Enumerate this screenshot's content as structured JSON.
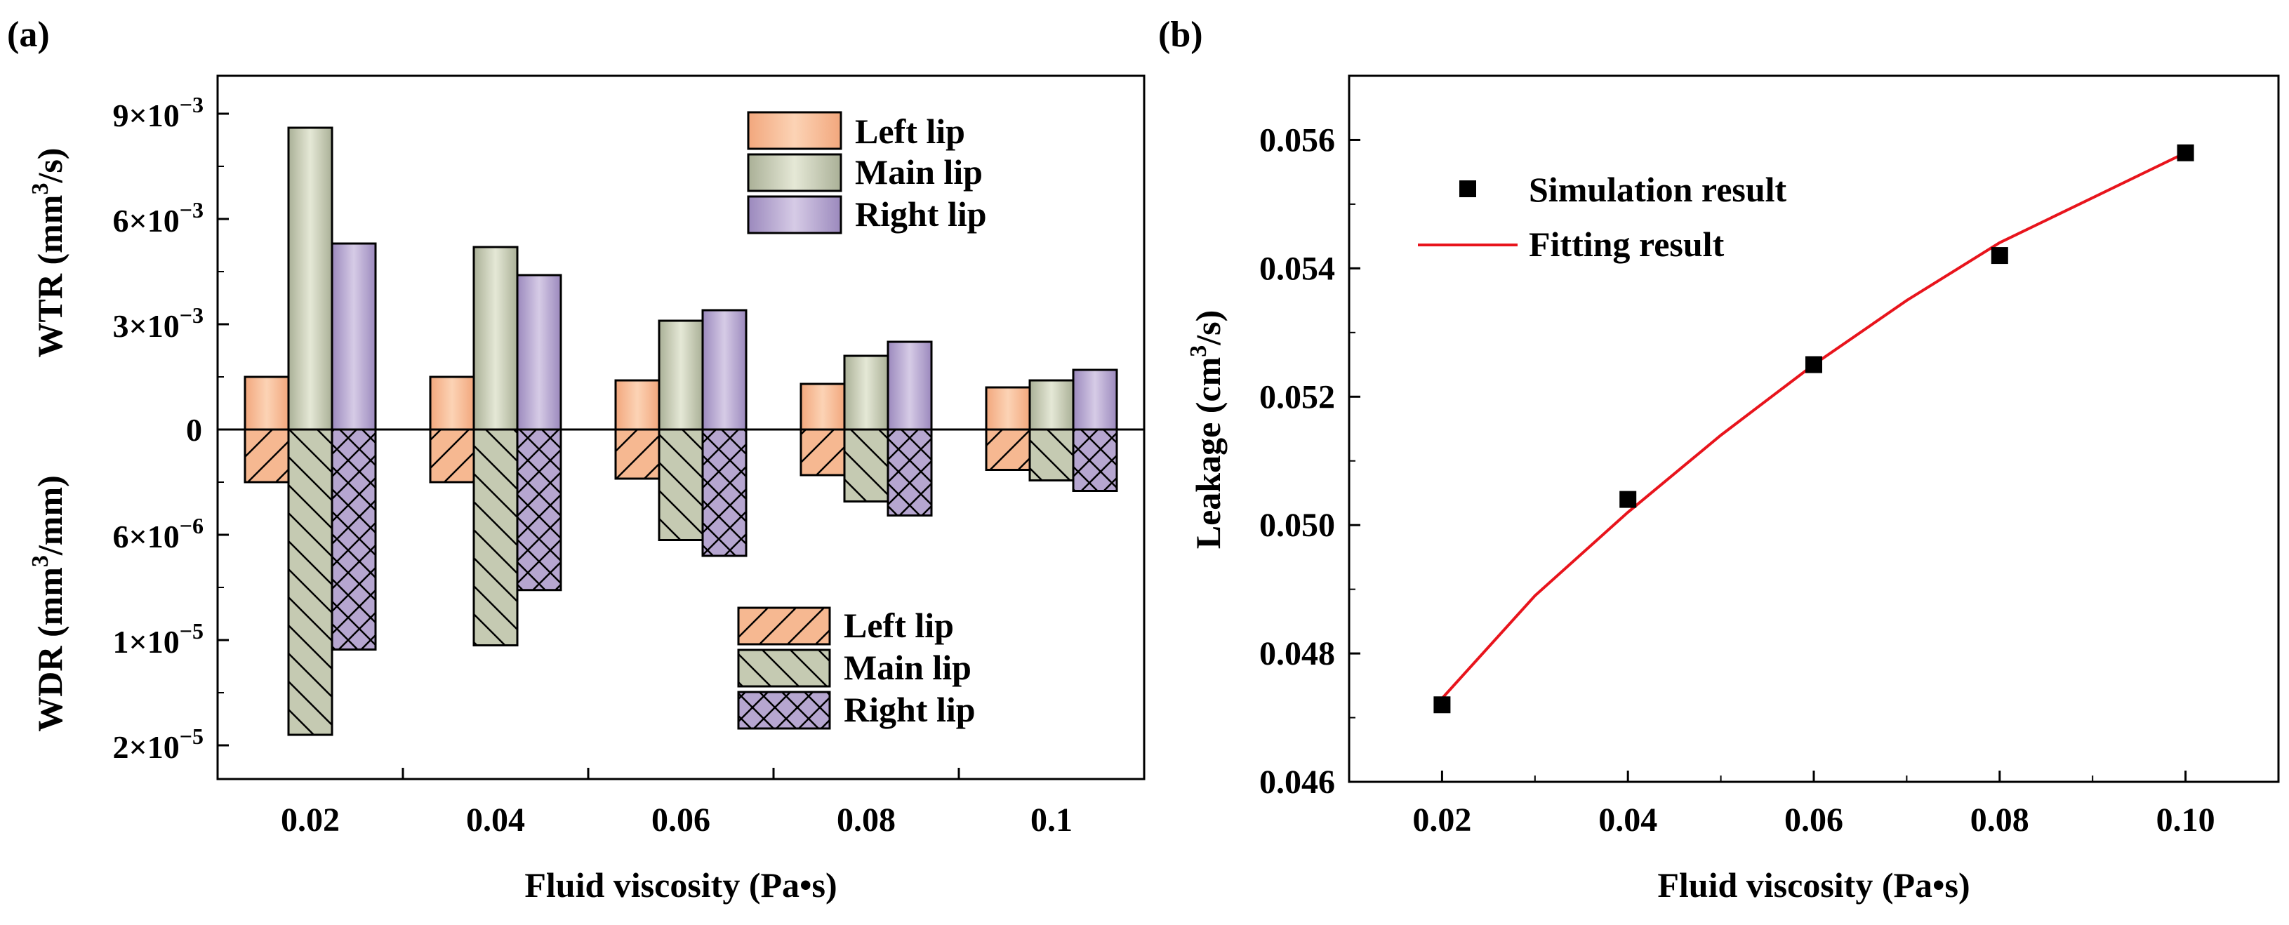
{
  "panel_a": {
    "label": "(a)",
    "xlabel": "Fluid viscosity (Pa•s)",
    "ylabel_top_main": "WTR (mm",
    "ylabel_top_sup": "3",
    "ylabel_top_end": "/s)",
    "ylabel_bottom_main": "WDR (mm",
    "ylabel_bottom_sup": "3",
    "ylabel_bottom_end": "/mm)",
    "ytick_zero": "0",
    "yticks_top": [
      {
        "mant": "3×10",
        "exp": "−3"
      },
      {
        "mant": "6×10",
        "exp": "−3"
      },
      {
        "mant": "9×10",
        "exp": "−3"
      }
    ],
    "yticks_bottom": [
      {
        "mant": "6×10",
        "exp": "−6"
      },
      {
        "mant": "1×10",
        "exp": "−5"
      },
      {
        "mant": "2×10",
        "exp": "−5"
      }
    ],
    "legend_top": [
      "Left lip",
      "Main lip",
      "Right lip"
    ],
    "legend_bottom": [
      "Left lip",
      "Main lip",
      "Right lip"
    ]
  },
  "panel_b": {
    "label": "(b)",
    "xlabel": "Fluid viscosity (Pa•s)",
    "ylabel_main": "Leakage (cm",
    "ylabel_sup": "3",
    "ylabel_end": "/s)",
    "legend_scatter": "Simulation result",
    "legend_line": "Fitting result"
  },
  "colors": {
    "left": "#f6b891",
    "main": "#c5cab2",
    "right": "#b6a6d0",
    "fit": "#e8141c",
    "marker": "#000000"
  },
  "chart_data": [
    {
      "type": "bar",
      "title": "",
      "categories": [
        "0.02",
        "0.04",
        "0.06",
        "0.08",
        "0.1"
      ],
      "xlabel": "Fluid viscosity (Pa•s)",
      "ylabel": "WTR (mm3/s)",
      "ylim": [
        0,
        0.0105
      ],
      "series": [
        {
          "name": "Left lip",
          "values": [
            0.0015,
            0.0015,
            0.0014,
            0.0013,
            0.0012
          ]
        },
        {
          "name": "Main lip",
          "values": [
            0.0086,
            0.0052,
            0.0031,
            0.0021,
            0.0014
          ]
        },
        {
          "name": "Right lip",
          "values": [
            0.0053,
            0.0044,
            0.0034,
            0.0025,
            0.0017
          ]
        }
      ]
    },
    {
      "type": "bar",
      "title": "",
      "categories": [
        "0.02",
        "0.04",
        "0.06",
        "0.08",
        "0.1"
      ],
      "xlabel": "Fluid viscosity (Pa•s)",
      "ylabel": "WDR (mm3/mm)",
      "scale": "nonlinear (ticks 6e-6, 1e-5, 2e-5 at equal spacing)",
      "tick_values": [
        0,
        6e-06,
        1e-05,
        2e-05
      ],
      "series": [
        {
          "name": "Left lip",
          "values": [
            3e-06,
            3e-06,
            2.8e-06,
            2.6e-06,
            2.3e-06
          ]
        },
        {
          "name": "Main lip",
          "values": [
            1.9e-05,
            1.05e-05,
            6.2e-06,
            4.1e-06,
            2.9e-06
          ]
        },
        {
          "name": "Right lip",
          "values": [
            1.09e-05,
            8.1e-06,
            6.8e-06,
            4.9e-06,
            3.5e-06
          ]
        }
      ]
    },
    {
      "type": "scatter",
      "title": "",
      "xlabel": "Fluid viscosity (Pa•s)",
      "ylabel": "Leakage (cm3/s)",
      "xlim": [
        0.01,
        0.11
      ],
      "ylim": [
        0.046,
        0.057
      ],
      "xticks": [
        "0.02",
        "0.04",
        "0.06",
        "0.08",
        "0.10"
      ],
      "yticks": [
        "0.046",
        "0.048",
        "0.050",
        "0.052",
        "0.054",
        "0.056"
      ],
      "series": [
        {
          "name": "Simulation result",
          "x": [
            0.02,
            0.04,
            0.06,
            0.08,
            0.1
          ],
          "y": [
            0.0472,
            0.0504,
            0.0525,
            0.0542,
            0.0558
          ]
        },
        {
          "name": "Fitting result",
          "kind": "line",
          "x": [
            0.02,
            0.03,
            0.04,
            0.05,
            0.06,
            0.07,
            0.08,
            0.09,
            0.1
          ],
          "y": [
            0.0473,
            0.0489,
            0.0502,
            0.0514,
            0.0525,
            0.0535,
            0.0544,
            0.0551,
            0.0558
          ]
        }
      ]
    }
  ]
}
